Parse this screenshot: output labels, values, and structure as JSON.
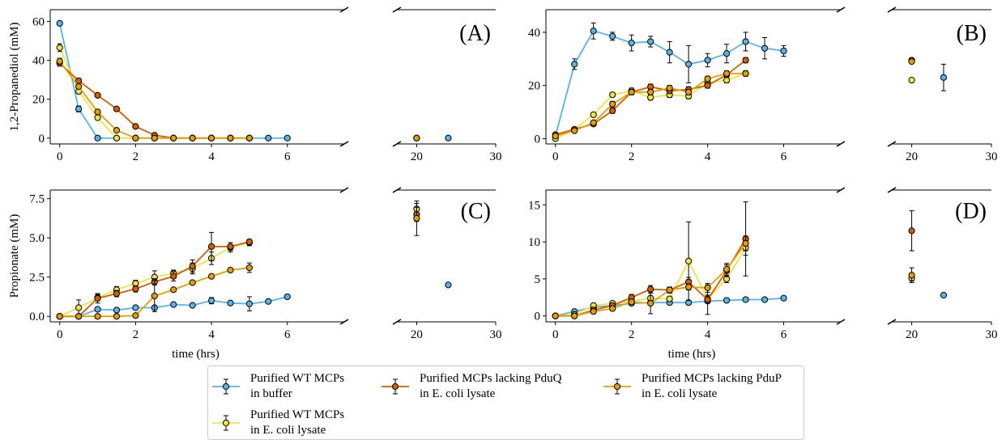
{
  "colors": {
    "wt_buffer": "#56B4E9",
    "wt_lysate": "#F0E442",
    "no_pduq": "#D55E00",
    "no_pdup": "#E69F00"
  },
  "legend": [
    {
      "key": "wt_buffer",
      "line1": "Purified WT MCPs",
      "line2": "in buffer"
    },
    {
      "key": "wt_lysate",
      "line1": "Purified WT MCPs",
      "line2": "in E. coli lysate"
    },
    {
      "key": "no_pduq",
      "line1": "Purified MCPs lacking PduQ",
      "line2": "in E. coli lysate"
    },
    {
      "key": "no_pdup",
      "line1": "Purified MCPs lacking PduP",
      "line2": "in E. coli lysate"
    }
  ],
  "chart_data": [
    {
      "panel": "A",
      "type": "line",
      "ylabel": "1,2-Propanediol (mM)",
      "xlabel": "",
      "xlim_left": [
        -0.25,
        7.5
      ],
      "xlim_right": [
        17.5,
        30
      ],
      "ylim": [
        -3,
        66
      ],
      "xticks_left": [
        0,
        2,
        4,
        6
      ],
      "xticks_right": [
        20,
        30
      ],
      "yticks": [
        0,
        20,
        40,
        60
      ],
      "ytick_labels": [
        "0",
        "20",
        "40",
        "60"
      ],
      "series": [
        {
          "key": "wt_buffer",
          "x": [
            0,
            0.5,
            1,
            1.5,
            2,
            2.5,
            3,
            3.5,
            4,
            4.5,
            5,
            5.5,
            6
          ],
          "y": [
            59,
            15,
            0,
            0,
            0,
            0,
            0,
            0,
            0,
            0,
            0,
            0,
            0
          ],
          "err": [
            0,
            1.5,
            0,
            0,
            0,
            0,
            0,
            0,
            0,
            0,
            0,
            0,
            0
          ],
          "late": [
            {
              "x": 24,
              "y": 0,
              "err": 0
            }
          ]
        },
        {
          "key": "wt_lysate",
          "x": [
            0,
            0.5,
            1,
            1.5,
            2,
            2.5,
            3,
            3.5,
            4,
            4.5,
            5
          ],
          "y": [
            46.5,
            24,
            10.5,
            0,
            0,
            0,
            0,
            0,
            0,
            0,
            0
          ],
          "err": [
            2,
            1,
            0.5,
            0,
            0,
            0,
            0,
            0,
            0,
            0,
            0
          ],
          "late": [
            {
              "x": 20,
              "y": 0,
              "err": 0
            }
          ]
        },
        {
          "key": "no_pduq",
          "x": [
            0,
            0.5,
            1,
            1.5,
            2,
            2.5,
            3,
            3.5,
            4,
            4.5,
            5
          ],
          "y": [
            38.5,
            29.5,
            22,
            15,
            6,
            1.5,
            0,
            0,
            0,
            0,
            0
          ],
          "err": [
            1.5,
            1,
            0.5,
            0.5,
            0.5,
            0,
            0,
            0,
            0,
            0,
            0
          ],
          "late": [
            {
              "x": 20,
              "y": 0,
              "err": 0
            }
          ]
        },
        {
          "key": "no_pdup",
          "x": [
            0,
            0.5,
            1,
            1.5,
            2,
            2.5,
            3,
            3.5,
            4,
            4.5,
            5
          ],
          "y": [
            39.5,
            26.5,
            13.5,
            4,
            0,
            0,
            0,
            0,
            0,
            0,
            0
          ],
          "err": [
            1.5,
            1,
            0.5,
            0.5,
            0,
            0,
            0,
            0,
            0,
            0,
            0
          ],
          "late": [
            {
              "x": 20,
              "y": 0,
              "err": 0
            }
          ]
        }
      ]
    },
    {
      "panel": "B",
      "type": "line",
      "ylabel": "",
      "xlabel": "",
      "xlim_left": [
        -0.25,
        7.5
      ],
      "xlim_right": [
        17.5,
        30
      ],
      "ylim": [
        -2,
        48.5
      ],
      "xticks_left": [
        0,
        2,
        4,
        6
      ],
      "xticks_right": [
        20,
        30
      ],
      "yticks": [
        0,
        20,
        40
      ],
      "ytick_labels": [
        "0",
        "20",
        "40"
      ],
      "series": [
        {
          "key": "wt_buffer",
          "x": [
            0,
            0.5,
            1,
            1.5,
            2,
            2.5,
            3,
            3.5,
            4,
            4.5,
            5,
            5.5,
            6
          ],
          "y": [
            1,
            28,
            40.5,
            38.5,
            36,
            36.5,
            32.5,
            28,
            29.5,
            32,
            36.5,
            34,
            33
          ],
          "err": [
            0.5,
            2,
            3,
            1.5,
            3,
            2,
            4,
            7,
            2.5,
            3.5,
            3.5,
            4,
            2
          ],
          "late": [
            {
              "x": 24,
              "y": 23,
              "err": 5
            }
          ]
        },
        {
          "key": "wt_lysate",
          "x": [
            0,
            0.5,
            1,
            1.5,
            2,
            2.5,
            3,
            3.5,
            4,
            4.5,
            5
          ],
          "y": [
            0,
            3.5,
            9,
            16.5,
            18,
            15.5,
            16.5,
            16,
            21,
            22,
            24.5
          ],
          "err": [
            0,
            0.5,
            0.5,
            0.5,
            1,
            1,
            1,
            1,
            1,
            1,
            0.5
          ],
          "late": [
            {
              "x": 20,
              "y": 22,
              "err": 0
            }
          ]
        },
        {
          "key": "no_pduq",
          "x": [
            0,
            0.5,
            1,
            1.5,
            2,
            2.5,
            3,
            3.5,
            4,
            4.5,
            5
          ],
          "y": [
            1.5,
            3.5,
            5.5,
            10.5,
            17.5,
            19.5,
            18,
            18.5,
            20,
            24,
            29.5
          ],
          "err": [
            0.5,
            0.5,
            0.5,
            1,
            1,
            1,
            1,
            1,
            1,
            1,
            1
          ],
          "late": [
            {
              "x": 20,
              "y": 29.5,
              "err": 0.5
            }
          ]
        },
        {
          "key": "no_pdup",
          "x": [
            0,
            0.5,
            1,
            1.5,
            2,
            2.5,
            3,
            3.5,
            4,
            4.5,
            5
          ],
          "y": [
            1,
            3,
            6,
            13,
            17.5,
            17.5,
            19,
            17.5,
            22.5,
            24.5,
            24.5
          ],
          "err": [
            0.5,
            0.5,
            0.5,
            1,
            1,
            1,
            1,
            1,
            1,
            1,
            1
          ],
          "late": [
            {
              "x": 20,
              "y": 29,
              "err": 0.5
            }
          ]
        }
      ]
    },
    {
      "panel": "C",
      "type": "line",
      "ylabel": "Propionate (mM)",
      "xlabel": "time (hrs)",
      "xlim_left": [
        -0.25,
        7.5
      ],
      "xlim_right": [
        17.5,
        30
      ],
      "ylim": [
        -0.35,
        8.05
      ],
      "xticks_left": [
        0,
        2,
        4,
        6
      ],
      "xticks_right": [
        20,
        30
      ],
      "yticks": [
        0,
        2.5,
        5,
        7.5
      ],
      "ytick_labels": [
        "0.0",
        "2.5",
        "5.0",
        "7.5"
      ],
      "series": [
        {
          "key": "wt_buffer",
          "x": [
            0,
            0.5,
            1,
            1.5,
            2,
            2.5,
            3,
            3.5,
            4,
            4.5,
            5,
            5.5,
            6
          ],
          "y": [
            0,
            0,
            0.45,
            0.4,
            0.55,
            0.55,
            0.75,
            0.7,
            1,
            0.85,
            0.8,
            0.95,
            1.25
          ],
          "err": [
            0,
            0,
            0.1,
            0.1,
            0.1,
            0.1,
            0.1,
            0.1,
            0.2,
            0.1,
            0.45,
            0.1,
            0.1
          ],
          "late": [
            {
              "x": 24,
              "y": 2,
              "err": 0
            }
          ]
        },
        {
          "key": "wt_lysate",
          "x": [
            0,
            0.5,
            1,
            1.5,
            2,
            2.5,
            3,
            3.5,
            4,
            4.5,
            5
          ],
          "y": [
            0,
            0.55,
            1.2,
            1.7,
            2.1,
            2.5,
            2.75,
            3.05,
            3.7,
            4.4,
            4.7
          ],
          "err": [
            0,
            0.5,
            0.2,
            0.2,
            0.2,
            0.4,
            0.2,
            0.35,
            0.4,
            0.3,
            0.2
          ],
          "late": [
            {
              "x": 20,
              "y": 6.85,
              "err": 0.35
            }
          ]
        },
        {
          "key": "no_pduq",
          "x": [
            0,
            0.5,
            1,
            1.5,
            2,
            2.5,
            3,
            3.5,
            4,
            4.5,
            5
          ],
          "y": [
            0,
            0,
            1.15,
            1.45,
            1.75,
            2.2,
            2.55,
            3.2,
            4.45,
            4.45,
            4.75
          ],
          "err": [
            0,
            0,
            0.3,
            0.2,
            0.2,
            0.2,
            0.3,
            0.4,
            0.9,
            0.25,
            0.15
          ],
          "late": [
            {
              "x": 20,
              "y": 6.5,
              "err": 0.45
            }
          ]
        },
        {
          "key": "no_pdup",
          "x": [
            0,
            0.5,
            1,
            1.5,
            2,
            2.5,
            3,
            3.5,
            4,
            4.5,
            5
          ],
          "y": [
            0,
            0,
            0,
            0,
            0.05,
            1.3,
            1.7,
            2.15,
            2.55,
            2.95,
            3.1
          ],
          "err": [
            0,
            0,
            0,
            0,
            0,
            1,
            0.1,
            0.1,
            0.1,
            0.1,
            0.3
          ],
          "late": [
            {
              "x": 20,
              "y": 6.25,
              "err": 1.1
            }
          ]
        }
      ]
    },
    {
      "panel": "D",
      "type": "line",
      "ylabel": "",
      "xlabel": "time (hrs)",
      "xlim_left": [
        -0.25,
        7.5
      ],
      "xlim_right": [
        17.5,
        30
      ],
      "ylim": [
        -0.8,
        17
      ],
      "xticks_left": [
        0,
        2,
        4,
        6
      ],
      "xticks_right": [
        20,
        30
      ],
      "yticks": [
        0,
        5,
        10,
        15
      ],
      "ytick_labels": [
        "0",
        "5",
        "10",
        "15"
      ],
      "series": [
        {
          "key": "wt_buffer",
          "x": [
            0,
            0.5,
            1,
            1.5,
            2,
            2.5,
            3,
            3.5,
            4,
            4.5,
            5,
            5.5,
            6
          ],
          "y": [
            0,
            0.6,
            1.2,
            1.4,
            1.7,
            1.8,
            1.8,
            1.8,
            2,
            2.1,
            2.2,
            2.2,
            2.4
          ],
          "err": [
            0,
            0.1,
            0.1,
            0.1,
            0.2,
            0.2,
            0.2,
            0.2,
            0.2,
            0.2,
            0.2,
            0.2,
            0.2
          ],
          "late": [
            {
              "x": 24,
              "y": 2.8,
              "err": 0
            }
          ]
        },
        {
          "key": "wt_lysate",
          "x": [
            0,
            0.5,
            1,
            1.5,
            2,
            2.5,
            3,
            3.5,
            4,
            4.5,
            5
          ],
          "y": [
            0,
            0.2,
            1.4,
            1.7,
            2,
            2.4,
            2.3,
            7.4,
            2.3,
            5,
            9.2
          ],
          "err": [
            0,
            0.2,
            0.3,
            0.3,
            0.3,
            0.3,
            0.3,
            5.3,
            0.5,
            0.5,
            1
          ],
          "late": [
            {
              "x": 20,
              "y": 5.1,
              "err": 0.4
            }
          ]
        },
        {
          "key": "no_pduq",
          "x": [
            0,
            0.5,
            1,
            1.5,
            2,
            2.5,
            3,
            3.5,
            4,
            4.5,
            5
          ],
          "y": [
            0,
            0,
            0.8,
            1.4,
            2.5,
            3.6,
            3.5,
            4.6,
            2.2,
            6.1,
            10.4
          ],
          "err": [
            0,
            0,
            0.3,
            0.3,
            0.4,
            0.5,
            0.4,
            0.6,
            2,
            0.8,
            5
          ],
          "late": [
            {
              "x": 20,
              "y": 11.5,
              "err": 2.7
            }
          ]
        },
        {
          "key": "no_pdup",
          "x": [
            0,
            0.5,
            1,
            1.5,
            2,
            2.5,
            3,
            3.5,
            4,
            4.5,
            5
          ],
          "y": [
            0,
            0,
            0.6,
            1,
            1.9,
            1.7,
            3.5,
            3.9,
            3.8,
            6.3,
            9.8
          ],
          "err": [
            0,
            0,
            0.3,
            0.3,
            0.3,
            1.4,
            0.4,
            0.4,
            0.6,
            0.8,
            1
          ],
          "late": [
            {
              "x": 20,
              "y": 5.5,
              "err": 1
            }
          ]
        }
      ]
    }
  ]
}
